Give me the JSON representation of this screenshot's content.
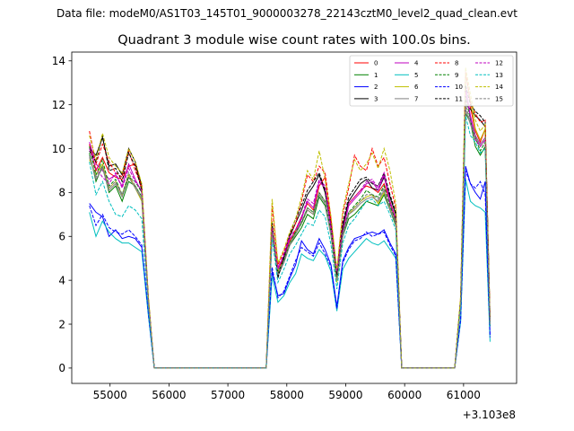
{
  "figure": {
    "suptitle": "Data file: modeM0/AS1T03_145T01_9000003278_22143cztM0_level2_quad_clean.evt",
    "offset_label": "+3.103e8"
  },
  "chart_data": {
    "type": "line",
    "title": "Quadrant 3 module wise count rates with 100.0s bins.",
    "xlabel": "",
    "ylabel": "",
    "x_offset": 310300000,
    "xlim": [
      54350,
      61900
    ],
    "ylim": [
      -0.7,
      14.4
    ],
    "xticks": [
      55000,
      56000,
      57000,
      58000,
      59000,
      60000,
      61000
    ],
    "yticks": [
      0,
      2,
      4,
      6,
      8,
      10,
      12,
      14
    ],
    "grid": false,
    "legend": {
      "placement": "top-right",
      "ncol": 4
    },
    "segments": [
      {
        "x_start": 54650,
        "x_end": 55650
      },
      {
        "x_start": 57750,
        "x_end": 59850
      },
      {
        "x_start": 60950,
        "x_end": 61450
      }
    ],
    "series": [
      {
        "name": "0",
        "color": "#ff0000",
        "dash": "solid",
        "seg1": [
          10.2,
          9.0,
          9.6,
          8.9,
          8.7,
          8.6,
          9.2,
          9.3,
          8.1,
          3.1
        ],
        "seg2": [
          6.0,
          4.5,
          5.0,
          5.8,
          6.3,
          6.9,
          7.5,
          7.2,
          8.3,
          8.7,
          6.6,
          4.2,
          6.3,
          7.5,
          7.8,
          8.1,
          8.3,
          8.2,
          8.0,
          8.4,
          7.6,
          6.8
        ],
        "seg3": [
          3.0,
          12.2,
          11.9,
          10.8,
          10.3,
          10.9,
          2.1
        ]
      },
      {
        "name": "1",
        "color": "#008000",
        "dash": "solid",
        "seg1": [
          9.8,
          8.5,
          9.2,
          8.0,
          8.3,
          7.6,
          8.5,
          8.3,
          7.8,
          3.0
        ],
        "seg2": [
          6.2,
          4.3,
          4.8,
          5.6,
          6.0,
          6.4,
          7.0,
          6.8,
          7.8,
          7.4,
          6.1,
          4.0,
          6.0,
          6.8,
          7.0,
          7.3,
          7.6,
          7.5,
          7.4,
          7.9,
          7.2,
          6.5
        ],
        "seg3": [
          2.9,
          11.6,
          11.2,
          10.1,
          9.7,
          10.1,
          1.9
        ]
      },
      {
        "name": "2",
        "color": "#0000ff",
        "dash": "solid",
        "seg1": [
          7.5,
          7.1,
          6.9,
          6.0,
          6.3,
          5.9,
          6.0,
          5.9,
          5.5,
          2.5
        ],
        "seg2": [
          4.4,
          3.3,
          3.4,
          4.1,
          4.7,
          5.8,
          5.4,
          5.2,
          5.9,
          5.4,
          4.7,
          2.8,
          4.9,
          5.5,
          5.9,
          6.0,
          6.1,
          6.2,
          6.1,
          6.3,
          5.7,
          5.2
        ],
        "seg3": [
          2.2,
          9.2,
          8.4,
          8.0,
          7.7,
          8.5,
          1.5
        ]
      },
      {
        "name": "3",
        "color": "#000000",
        "dash": "solid",
        "seg1": [
          10.0,
          9.7,
          10.5,
          9.2,
          9.3,
          8.8,
          10.0,
          9.4,
          8.3,
          3.2
        ],
        "seg2": [
          6.5,
          4.2,
          5.0,
          6.0,
          6.6,
          7.2,
          7.9,
          8.3,
          8.8,
          8.0,
          6.4,
          4.1,
          6.5,
          7.6,
          8.0,
          8.4,
          8.6,
          8.2,
          8.1,
          8.7,
          7.8,
          7.0
        ],
        "seg3": [
          3.1,
          12.0,
          11.8,
          11.5,
          11.3,
          11.0,
          2.2
        ]
      },
      {
        "name": "4",
        "color": "#bf00bf",
        "dash": "solid",
        "seg1": [
          10.3,
          9.3,
          9.0,
          8.6,
          8.8,
          8.3,
          9.3,
          8.6,
          8.0,
          3.1
        ],
        "seg2": [
          6.3,
          4.6,
          5.1,
          5.9,
          6.2,
          6.8,
          7.6,
          7.3,
          8.5,
          8.2,
          6.3,
          4.3,
          6.2,
          7.4,
          7.7,
          8.0,
          8.4,
          8.5,
          8.1,
          8.8,
          7.5,
          6.7
        ],
        "seg3": [
          3.0,
          12.8,
          11.5,
          10.6,
          10.2,
          10.5,
          2.0
        ]
      },
      {
        "name": "5",
        "color": "#00bfbf",
        "dash": "solid",
        "seg1": [
          7.1,
          6.0,
          6.7,
          6.2,
          5.9,
          5.7,
          5.7,
          5.5,
          5.3,
          2.4
        ],
        "seg2": [
          4.2,
          3.0,
          3.3,
          3.9,
          4.3,
          5.2,
          5.0,
          4.9,
          5.4,
          5.1,
          4.4,
          2.6,
          4.5,
          5.0,
          5.3,
          5.6,
          5.9,
          5.7,
          5.6,
          5.8,
          5.4,
          5.0
        ],
        "seg3": [
          2.1,
          8.6,
          7.6,
          7.4,
          7.3,
          7.1,
          1.2
        ]
      },
      {
        "name": "6",
        "color": "#bfbf00",
        "dash": "solid",
        "seg1": [
          9.5,
          8.8,
          9.3,
          8.2,
          8.5,
          7.9,
          8.8,
          8.2,
          7.6,
          3.0
        ],
        "seg2": [
          6.7,
          4.4,
          4.9,
          5.7,
          6.2,
          6.6,
          7.2,
          7.0,
          8.0,
          7.6,
          6.0,
          3.9,
          6.1,
          7.0,
          7.3,
          7.6,
          7.8,
          7.9,
          7.5,
          8.0,
          7.3,
          6.6
        ],
        "seg3": [
          2.9,
          13.4,
          12.2,
          10.9,
          10.4,
          10.9,
          2.0
        ]
      },
      {
        "name": "7",
        "color": "#808080",
        "dash": "solid",
        "seg1": [
          9.7,
          8.6,
          9.1,
          8.1,
          8.4,
          7.8,
          8.7,
          8.2,
          7.7,
          3.0
        ],
        "seg2": [
          6.1,
          4.2,
          4.8,
          5.6,
          6.1,
          6.6,
          7.2,
          7.0,
          7.9,
          7.5,
          6.0,
          4.0,
          6.0,
          7.0,
          7.2,
          7.5,
          7.7,
          7.8,
          7.6,
          8.1,
          7.2,
          6.6
        ],
        "seg3": [
          2.9,
          11.8,
          11.1,
          10.5,
          10.1,
          10.4,
          2.0
        ]
      },
      {
        "name": "8",
        "color": "#ff0000",
        "dash": "dashed",
        "seg1": [
          10.8,
          9.3,
          10.2,
          9.4,
          8.9,
          8.7,
          9.9,
          9.0,
          8.3,
          3.2
        ],
        "seg2": [
          7.4,
          4.7,
          5.3,
          6.1,
          6.6,
          7.6,
          8.8,
          8.5,
          9.2,
          8.9,
          6.8,
          4.4,
          7.0,
          8.2,
          9.7,
          9.2,
          9.0,
          10.0,
          9.2,
          9.6,
          8.4,
          7.3
        ],
        "seg3": [
          3.2,
          13.5,
          12.1,
          11.6,
          11.2,
          11.3,
          2.2
        ]
      },
      {
        "name": "9",
        "color": "#008000",
        "dash": "dashed",
        "seg1": [
          10.1,
          8.8,
          9.5,
          8.3,
          8.6,
          7.9,
          8.7,
          8.5,
          8.0,
          3.1
        ],
        "seg2": [
          6.4,
          4.4,
          4.9,
          5.7,
          6.2,
          6.6,
          7.3,
          7.1,
          8.0,
          7.6,
          6.2,
          4.1,
          6.2,
          7.1,
          7.4,
          7.7,
          8.1,
          7.9,
          7.8,
          8.3,
          7.4,
          6.7
        ],
        "seg3": [
          3.0,
          12.4,
          11.3,
          10.5,
          9.9,
          10.3,
          2.0
        ]
      },
      {
        "name": "10",
        "color": "#0000ff",
        "dash": "dashed",
        "seg1": [
          7.4,
          6.5,
          7.0,
          6.4,
          6.2,
          6.1,
          6.3,
          6.0,
          5.6,
          2.5
        ],
        "seg2": [
          4.6,
          3.2,
          3.5,
          4.2,
          4.9,
          5.5,
          5.3,
          5.1,
          5.7,
          5.2,
          4.6,
          2.7,
          4.8,
          5.4,
          5.8,
          5.9,
          6.2,
          6.0,
          6.1,
          6.2,
          5.6,
          5.1
        ],
        "seg3": [
          2.2,
          9.0,
          8.4,
          8.2,
          8.5,
          7.9,
          1.4
        ]
      },
      {
        "name": "11",
        "color": "#000000",
        "dash": "dashed",
        "seg1": [
          9.9,
          9.4,
          10.6,
          9.0,
          9.1,
          8.5,
          9.8,
          9.2,
          8.1,
          3.1
        ],
        "seg2": [
          6.6,
          4.1,
          5.1,
          6.1,
          6.8,
          7.4,
          8.1,
          8.5,
          8.9,
          8.1,
          6.5,
          4.2,
          6.6,
          7.8,
          8.2,
          8.6,
          8.7,
          8.4,
          8.3,
          8.9,
          7.9,
          7.1
        ],
        "seg3": [
          3.1,
          12.9,
          12.0,
          11.7,
          11.5,
          11.2,
          2.2
        ]
      },
      {
        "name": "12",
        "color": "#bf00bf",
        "dash": "dashed",
        "seg1": [
          10.0,
          9.1,
          8.7,
          8.4,
          8.9,
          8.2,
          9.1,
          8.5,
          8.1,
          3.1
        ],
        "seg2": [
          6.4,
          4.5,
          5.2,
          6.0,
          6.3,
          6.9,
          7.7,
          7.5,
          8.6,
          8.3,
          6.4,
          4.4,
          6.3,
          7.5,
          7.8,
          8.1,
          8.5,
          8.6,
          8.2,
          8.9,
          7.6,
          6.8
        ],
        "seg3": [
          3.0,
          12.6,
          11.4,
          10.4,
          10.1,
          10.4,
          2.0
        ]
      },
      {
        "name": "13",
        "color": "#00bfbf",
        "dash": "dashed",
        "seg1": [
          9.4,
          7.9,
          8.5,
          7.6,
          7.0,
          6.9,
          7.4,
          7.2,
          6.8,
          2.8
        ],
        "seg2": [
          5.9,
          3.9,
          4.5,
          5.2,
          5.6,
          6.1,
          6.6,
          6.5,
          7.2,
          6.9,
          5.6,
          3.6,
          5.7,
          6.5,
          6.8,
          7.2,
          7.6,
          7.7,
          7.4,
          7.6,
          7.0,
          6.3
        ],
        "seg3": [
          2.8,
          11.5,
          10.6,
          10.3,
          9.8,
          10.0,
          1.9
        ]
      },
      {
        "name": "14",
        "color": "#bfbf00",
        "dash": "dashed",
        "seg1": [
          10.6,
          9.5,
          10.7,
          9.6,
          9.2,
          8.9,
          10.0,
          9.4,
          8.4,
          3.3
        ],
        "seg2": [
          7.7,
          4.8,
          5.4,
          6.2,
          6.8,
          7.8,
          9.0,
          8.6,
          9.9,
          8.6,
          6.9,
          4.5,
          7.2,
          8.4,
          9.5,
          9.0,
          9.3,
          9.8,
          9.1,
          10.0,
          9.0,
          7.5
        ],
        "seg3": [
          3.3,
          13.7,
          12.5,
          11.3,
          10.8,
          11.1,
          2.3
        ]
      },
      {
        "name": "15",
        "color": "#808080",
        "dash": "dashed",
        "seg1": [
          9.6,
          8.7,
          9.2,
          8.2,
          8.5,
          7.9,
          8.9,
          8.3,
          7.8,
          3.0
        ],
        "seg2": [
          6.2,
          4.3,
          4.9,
          5.7,
          6.1,
          6.7,
          7.3,
          7.1,
          8.0,
          7.6,
          6.1,
          4.0,
          6.1,
          7.1,
          7.3,
          7.6,
          7.9,
          7.9,
          7.7,
          8.2,
          7.3,
          6.6
        ],
        "seg3": [
          2.9,
          12.0,
          11.2,
          10.6,
          10.2,
          10.5,
          2.0
        ]
      }
    ]
  }
}
